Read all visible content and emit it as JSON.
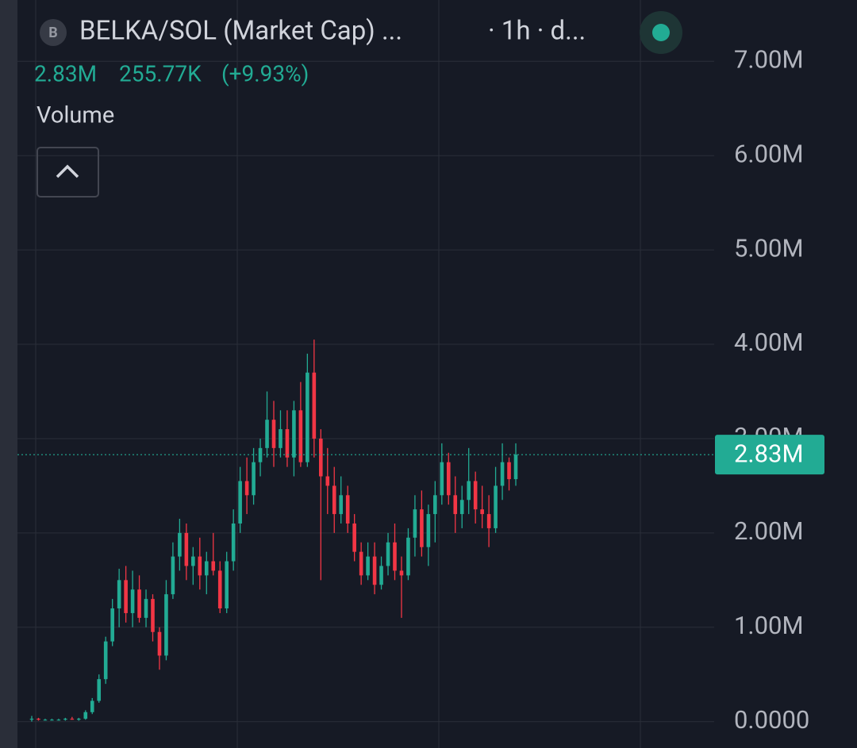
{
  "chart_data": {
    "type": "candlestick",
    "symbol_icon": "B",
    "title": "BELKA/SOL (Market Cap) ...",
    "interval": "· 1h · d...",
    "change": "255.77K",
    "change_percent": "(+9.93%)",
    "indicator_label": "Volume",
    "last_price": {
      "value": 2.83,
      "label": "2.83M"
    },
    "up_color": "#22ab94",
    "down_color": "#f23645",
    "ylim": [
      -0.28,
      7.65
    ],
    "yticks": [
      {
        "value": 0,
        "label": "0.0000"
      },
      {
        "value": 1,
        "label": "1.00M"
      },
      {
        "value": 2,
        "label": "2.00M"
      },
      {
        "value": 3,
        "label": "3.00M"
      },
      {
        "value": 4,
        "label": "4.00M"
      },
      {
        "value": 5,
        "label": "5.00M"
      },
      {
        "value": 6,
        "label": "6.00M"
      },
      {
        "value": 7,
        "label": "7.00M"
      }
    ],
    "grid": true,
    "open": [
      0.02,
      0.03,
      0.02,
      0.02,
      0.02,
      0.02,
      0.03,
      0.02,
      0.03,
      0.1,
      0.22,
      0.45,
      0.85,
      1.2,
      1.5,
      1.15,
      1.4,
      1.1,
      1.3,
      0.95,
      0.7,
      1.35,
      1.75,
      2.0,
      1.65,
      1.75,
      1.55,
      1.7,
      1.6,
      1.2,
      1.7,
      2.1,
      2.55,
      2.4,
      2.75,
      2.9,
      3.2,
      2.9,
      3.1,
      2.8,
      3.3,
      2.75,
      3.7,
      3.0,
      2.6,
      2.5,
      2.2,
      2.4,
      2.1,
      1.8,
      1.55,
      1.75,
      1.45,
      1.65,
      1.9,
      1.6,
      1.55,
      1.95,
      2.25,
      1.85,
      2.2,
      2.4,
      2.75,
      2.4,
      2.2,
      2.35,
      2.55,
      2.25,
      2.2,
      2.05,
      2.5,
      2.75,
      2.57
    ],
    "high": [
      0.06,
      0.04,
      0.03,
      0.03,
      0.03,
      0.04,
      0.05,
      0.04,
      0.12,
      0.25,
      0.5,
      0.9,
      1.3,
      1.62,
      1.65,
      1.6,
      1.55,
      1.4,
      1.35,
      1.0,
      1.5,
      1.9,
      2.15,
      2.1,
      1.85,
      1.95,
      1.8,
      2.0,
      1.7,
      1.8,
      2.25,
      2.7,
      2.8,
      2.9,
      3.0,
      3.5,
      3.4,
      3.3,
      3.3,
      3.4,
      3.6,
      3.9,
      4.05,
      3.1,
      2.9,
      2.7,
      2.6,
      2.5,
      2.2,
      1.9,
      1.9,
      1.9,
      1.75,
      2.0,
      2.1,
      1.75,
      2.05,
      2.4,
      2.45,
      2.3,
      2.55,
      2.95,
      2.85,
      2.6,
      2.5,
      2.9,
      2.65,
      2.5,
      2.4,
      2.7,
      2.95,
      2.8,
      2.95
    ],
    "low": [
      0.0,
      0.01,
      0.01,
      0.01,
      0.01,
      0.01,
      0.02,
      0.01,
      0.02,
      0.08,
      0.2,
      0.4,
      0.8,
      1.0,
      1.05,
      1.0,
      1.05,
      1.0,
      0.85,
      0.55,
      0.65,
      1.3,
      1.6,
      1.5,
      1.45,
      1.4,
      1.35,
      1.55,
      1.15,
      1.15,
      1.6,
      2.0,
      2.2,
      2.3,
      2.6,
      2.8,
      2.7,
      2.8,
      2.7,
      2.6,
      2.7,
      2.7,
      2.8,
      1.5,
      2.2,
      2.0,
      2.1,
      2.0,
      1.7,
      1.45,
      1.5,
      1.35,
      1.4,
      1.55,
      1.5,
      1.1,
      1.5,
      1.75,
      1.75,
      1.65,
      1.9,
      2.3,
      2.3,
      2.0,
      2.05,
      2.2,
      2.1,
      2.05,
      1.85,
      2.0,
      2.35,
      2.45,
      2.5
    ],
    "close": [
      0.03,
      0.02,
      0.02,
      0.02,
      0.02,
      0.03,
      0.02,
      0.03,
      0.1,
      0.22,
      0.45,
      0.85,
      1.2,
      1.5,
      1.15,
      1.4,
      1.1,
      1.3,
      0.95,
      0.7,
      1.35,
      1.75,
      2.0,
      1.65,
      1.75,
      1.55,
      1.7,
      1.6,
      1.2,
      1.7,
      2.1,
      2.55,
      2.4,
      2.75,
      2.9,
      3.2,
      2.9,
      3.1,
      2.8,
      3.3,
      2.75,
      3.7,
      3.0,
      2.6,
      2.5,
      2.2,
      2.4,
      2.1,
      1.8,
      1.55,
      1.75,
      1.45,
      1.65,
      1.9,
      1.6,
      1.55,
      1.95,
      2.25,
      1.85,
      2.2,
      2.4,
      2.75,
      2.4,
      2.2,
      2.35,
      2.55,
      2.25,
      2.2,
      2.05,
      2.5,
      2.75,
      2.57,
      2.83
    ]
  }
}
